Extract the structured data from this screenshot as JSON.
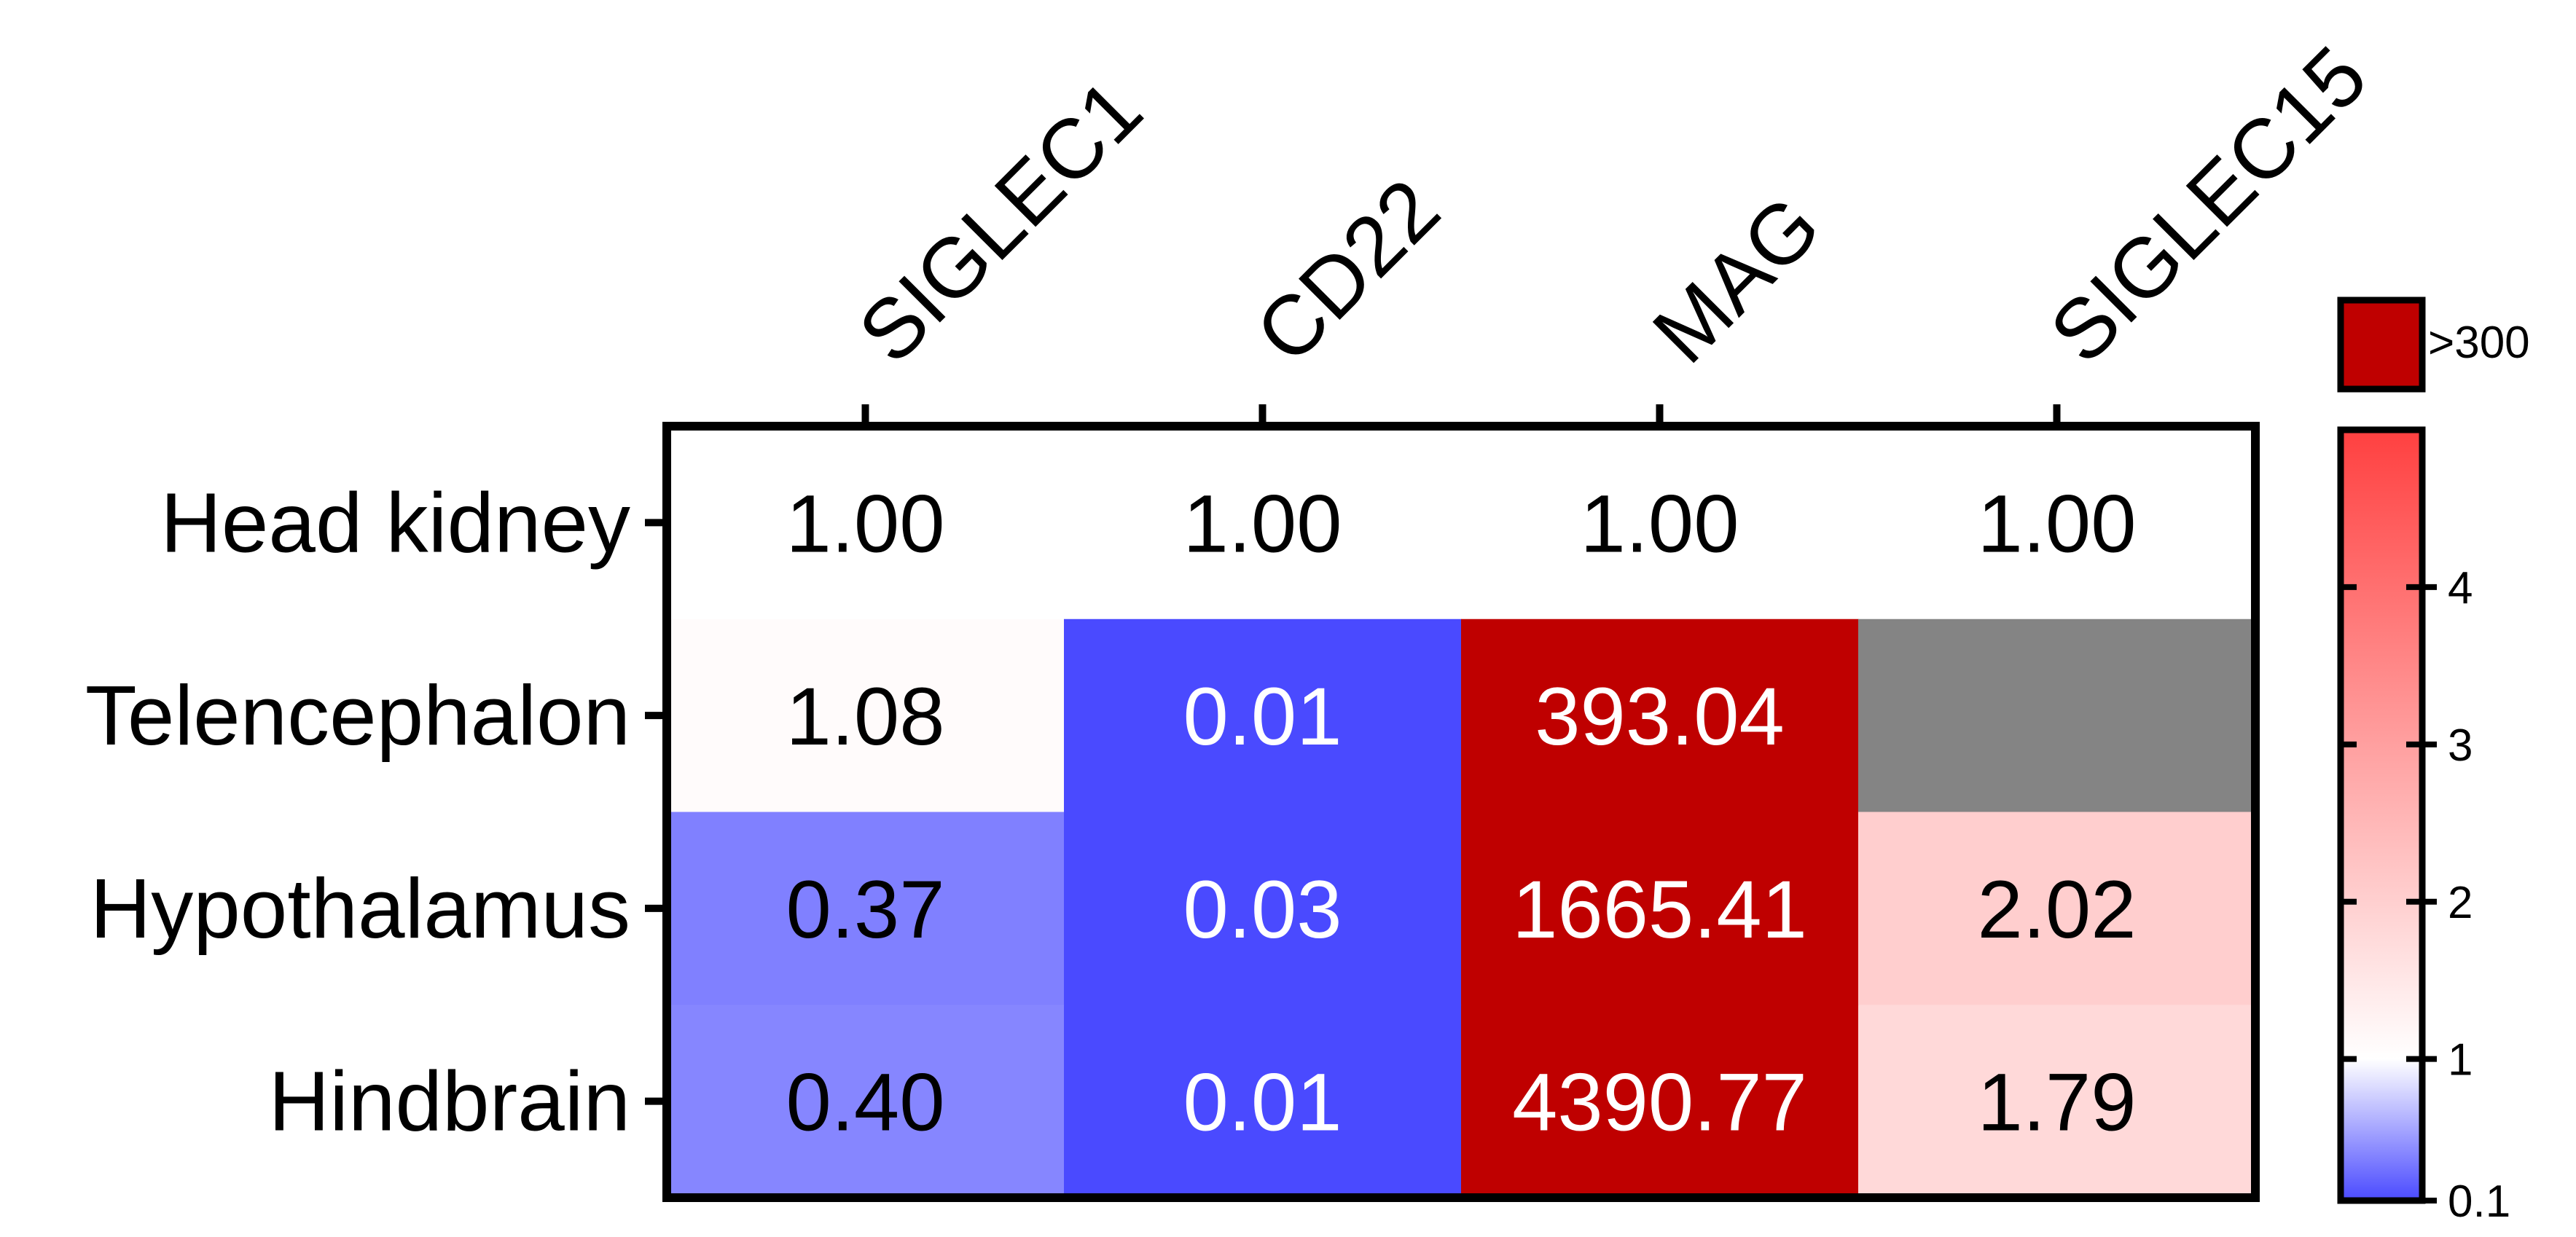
{
  "chart_data": {
    "type": "heatmap",
    "title": "",
    "columns": [
      "SIGLEC1",
      "CD22",
      "MAG",
      "SIGLEC15"
    ],
    "rows": [
      "Head kidney",
      "Telencephalon",
      "Hypothalamus",
      "Hindbrain"
    ],
    "values": [
      [
        1.0,
        1.0,
        1.0,
        1.0
      ],
      [
        1.08,
        0.01,
        393.04,
        null
      ],
      [
        0.37,
        0.03,
        1665.41,
        2.02
      ],
      [
        0.4,
        0.01,
        4390.77,
        1.79
      ]
    ],
    "cell_labels": [
      [
        "1.00",
        "1.00",
        "1.00",
        "1.00"
      ],
      [
        "1.08",
        "0.01",
        "393.04",
        ""
      ],
      [
        "0.37",
        "0.03",
        "1665.41",
        "2.02"
      ],
      [
        "0.40",
        "0.01",
        "4390.77",
        "1.79"
      ]
    ],
    "colorbar": {
      "ticks": [
        {
          "value": 0.1,
          "label": "0.1"
        },
        {
          "value": 1,
          "label": "1"
        },
        {
          "value": 2,
          "label": "2"
        },
        {
          "value": 3,
          "label": "3"
        },
        {
          "value": 4,
          "label": "4"
        }
      ],
      "range": [
        0.1,
        5
      ],
      "overflow_label": ">300",
      "overflow_color": "#bf0000"
    },
    "colors": {
      "low": "#4a4aff",
      "mid": "#ffffff",
      "high": "#ff4040",
      "missing": "#848484",
      "overflow": "#bf0000"
    }
  }
}
